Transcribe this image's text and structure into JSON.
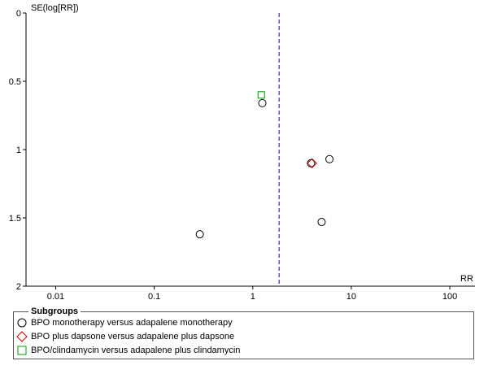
{
  "chart_data": {
    "type": "scatter",
    "title": "",
    "xlabel": "RR",
    "ylabel": "SE(log[RR])",
    "x_scale": "log",
    "xlim": [
      0.005,
      180
    ],
    "ylim": [
      0,
      2
    ],
    "y_reversed": true,
    "x_ticks": [
      0.01,
      0.1,
      1,
      10,
      100
    ],
    "x_tick_labels": [
      "0.01",
      "0.1",
      "1",
      "10",
      "100"
    ],
    "y_ticks": [
      0,
      0.5,
      1,
      1.5,
      2
    ],
    "y_tick_labels": [
      "0",
      "0.5",
      "1",
      "1.5",
      "2"
    ],
    "reference_line": {
      "x": 1.85,
      "style": "dashed",
      "color": "#0000cc"
    },
    "grid": false,
    "legend_position": "bottom",
    "series": [
      {
        "name": "BPO monotherapy versus adapalene monotherapy",
        "marker": "circle",
        "color": "#000000",
        "points": [
          {
            "x": 1.25,
            "y": 0.66
          },
          {
            "x": 6.0,
            "y": 1.07
          },
          {
            "x": 3.9,
            "y": 1.1
          },
          {
            "x": 5.0,
            "y": 1.53
          },
          {
            "x": 0.29,
            "y": 1.62
          }
        ]
      },
      {
        "name": "BPO plus dapsone versus adapalene plus dapsone",
        "marker": "diamond",
        "color": "#cc0000",
        "points": [
          {
            "x": 4.0,
            "y": 1.1
          }
        ]
      },
      {
        "name": "BPO/clindamycin versus adapalene plus clindamycin",
        "marker": "square",
        "color": "#009900",
        "points": [
          {
            "x": 1.22,
            "y": 0.6
          }
        ]
      }
    ]
  },
  "legend": {
    "title": "Subgroups"
  }
}
